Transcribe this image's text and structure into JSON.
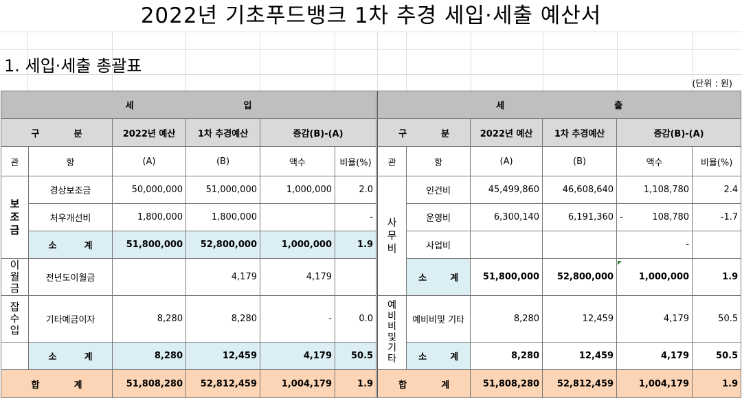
{
  "title": "2022년 기초푸드뱅크 1차 추경 세입·세출 예산서",
  "section_title": "1. 세입·세출 총괄표",
  "unit": "(단위 : 원)",
  "headers": {
    "revenue_a": "세",
    "revenue_b": "입",
    "expense_a": "세",
    "expense_b": "출",
    "gu": "구",
    "bun": "분",
    "col_2022": "2022년 예산",
    "col_1st": "1차 추경예산",
    "col_diff": "증감(B)-(A)",
    "gwan": "관",
    "hang": "항",
    "a": "(A)",
    "b": "(B)",
    "amount": "액수",
    "ratio": "비율(%)"
  },
  "revenue": {
    "group_subsidy": "보조금",
    "group_carry": "이월금",
    "group_misc": "잡수입",
    "rows": [
      {
        "item": "경상보조금",
        "a": "50,000,000",
        "b": "51,000,000",
        "amt": "1,000,000",
        "ratio": "2.0"
      },
      {
        "item": "처우개선비",
        "a": "1,800,000",
        "b": "1,800,000",
        "amt": "",
        "ratio": "-"
      },
      {
        "item_a": "소",
        "item_b": "계",
        "a": "51,800,000",
        "b": "52,800,000",
        "amt": "1,000,000",
        "ratio": "1.9"
      },
      {
        "item": "전년도이월금",
        "a": "",
        "b": "4,179",
        "amt": "4,179",
        "ratio": ""
      },
      {
        "item": "기타예금이자",
        "a": "8,280",
        "b": "8,280",
        "amt": "-",
        "ratio": "0.0"
      },
      {
        "item_a": "소",
        "item_b": "계",
        "a": "8,280",
        "b": "12,459",
        "amt": "4,179",
        "ratio": "50.5"
      }
    ]
  },
  "expense": {
    "group_ops": "사무비",
    "group_reserve": "예비비및기타",
    "rows": [
      {
        "item": "인건비",
        "a": "45,499,860",
        "b": "46,608,640",
        "amt": "1,108,780",
        "ratio": "2.4"
      },
      {
        "item": "운영비",
        "a": "6,300,140",
        "b": "6,191,360",
        "amt_sign": "-",
        "amt": "108,780",
        "ratio": "-1.7"
      },
      {
        "item": "사업비",
        "a": "",
        "b": "",
        "amt": "-",
        "ratio": ""
      },
      {
        "item_a": "소",
        "item_b": "계",
        "a": "51,800,000",
        "b": "52,800,000",
        "amt": "1,000,000",
        "ratio": "1.9"
      },
      {
        "item": "예비비및 기타",
        "a": "8,280",
        "b": "12,459",
        "amt": "4,179",
        "ratio": "50.5"
      },
      {
        "item_a": "소",
        "item_b": "계",
        "a": "8,280",
        "b": "12,459",
        "amt": "4,179",
        "ratio": "50.5"
      }
    ]
  },
  "totals": {
    "label_a": "합",
    "label_b": "계",
    "revenue": {
      "a": "51,808,280",
      "b": "52,812,459",
      "amt": "1,004,179",
      "ratio": "1.9"
    },
    "expense": {
      "a": "51,808,280",
      "b": "52,812,459",
      "amt": "1,004,179",
      "ratio": "1.9"
    }
  },
  "colors": {
    "header_dark": "#bfbfbf",
    "header_light": "#d9d9d9",
    "subtotal": "#dbeef4",
    "total": "#fbd5b5"
  }
}
